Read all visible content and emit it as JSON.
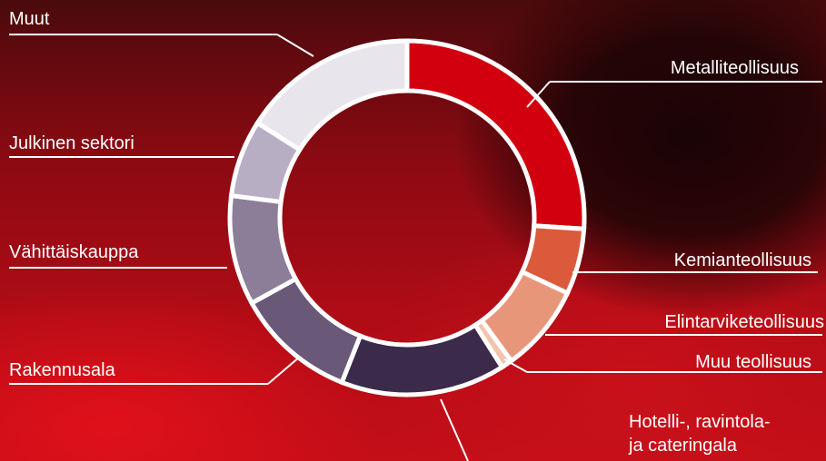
{
  "chart_data": {
    "type": "donut",
    "categories": [
      "Metalliteollisuus",
      "Kemianteollisuus",
      "Elintarviketeollisuus",
      "Muu teollisuus",
      "Hotelli-, ravintola-\nja cateringala",
      "Rakennusala",
      "Vähittäiskauppa",
      "Julkinen sektori",
      "Muut"
    ],
    "values": [
      26,
      6,
      8,
      1,
      15,
      11,
      10,
      7,
      16
    ],
    "colors": [
      "#d2000f",
      "#dc5a3c",
      "#e8967a",
      "#f2c4ac",
      "#3c2a4a",
      "#6a5878",
      "#8c7e98",
      "#b8aec4",
      "#e8e6ec"
    ]
  }
}
